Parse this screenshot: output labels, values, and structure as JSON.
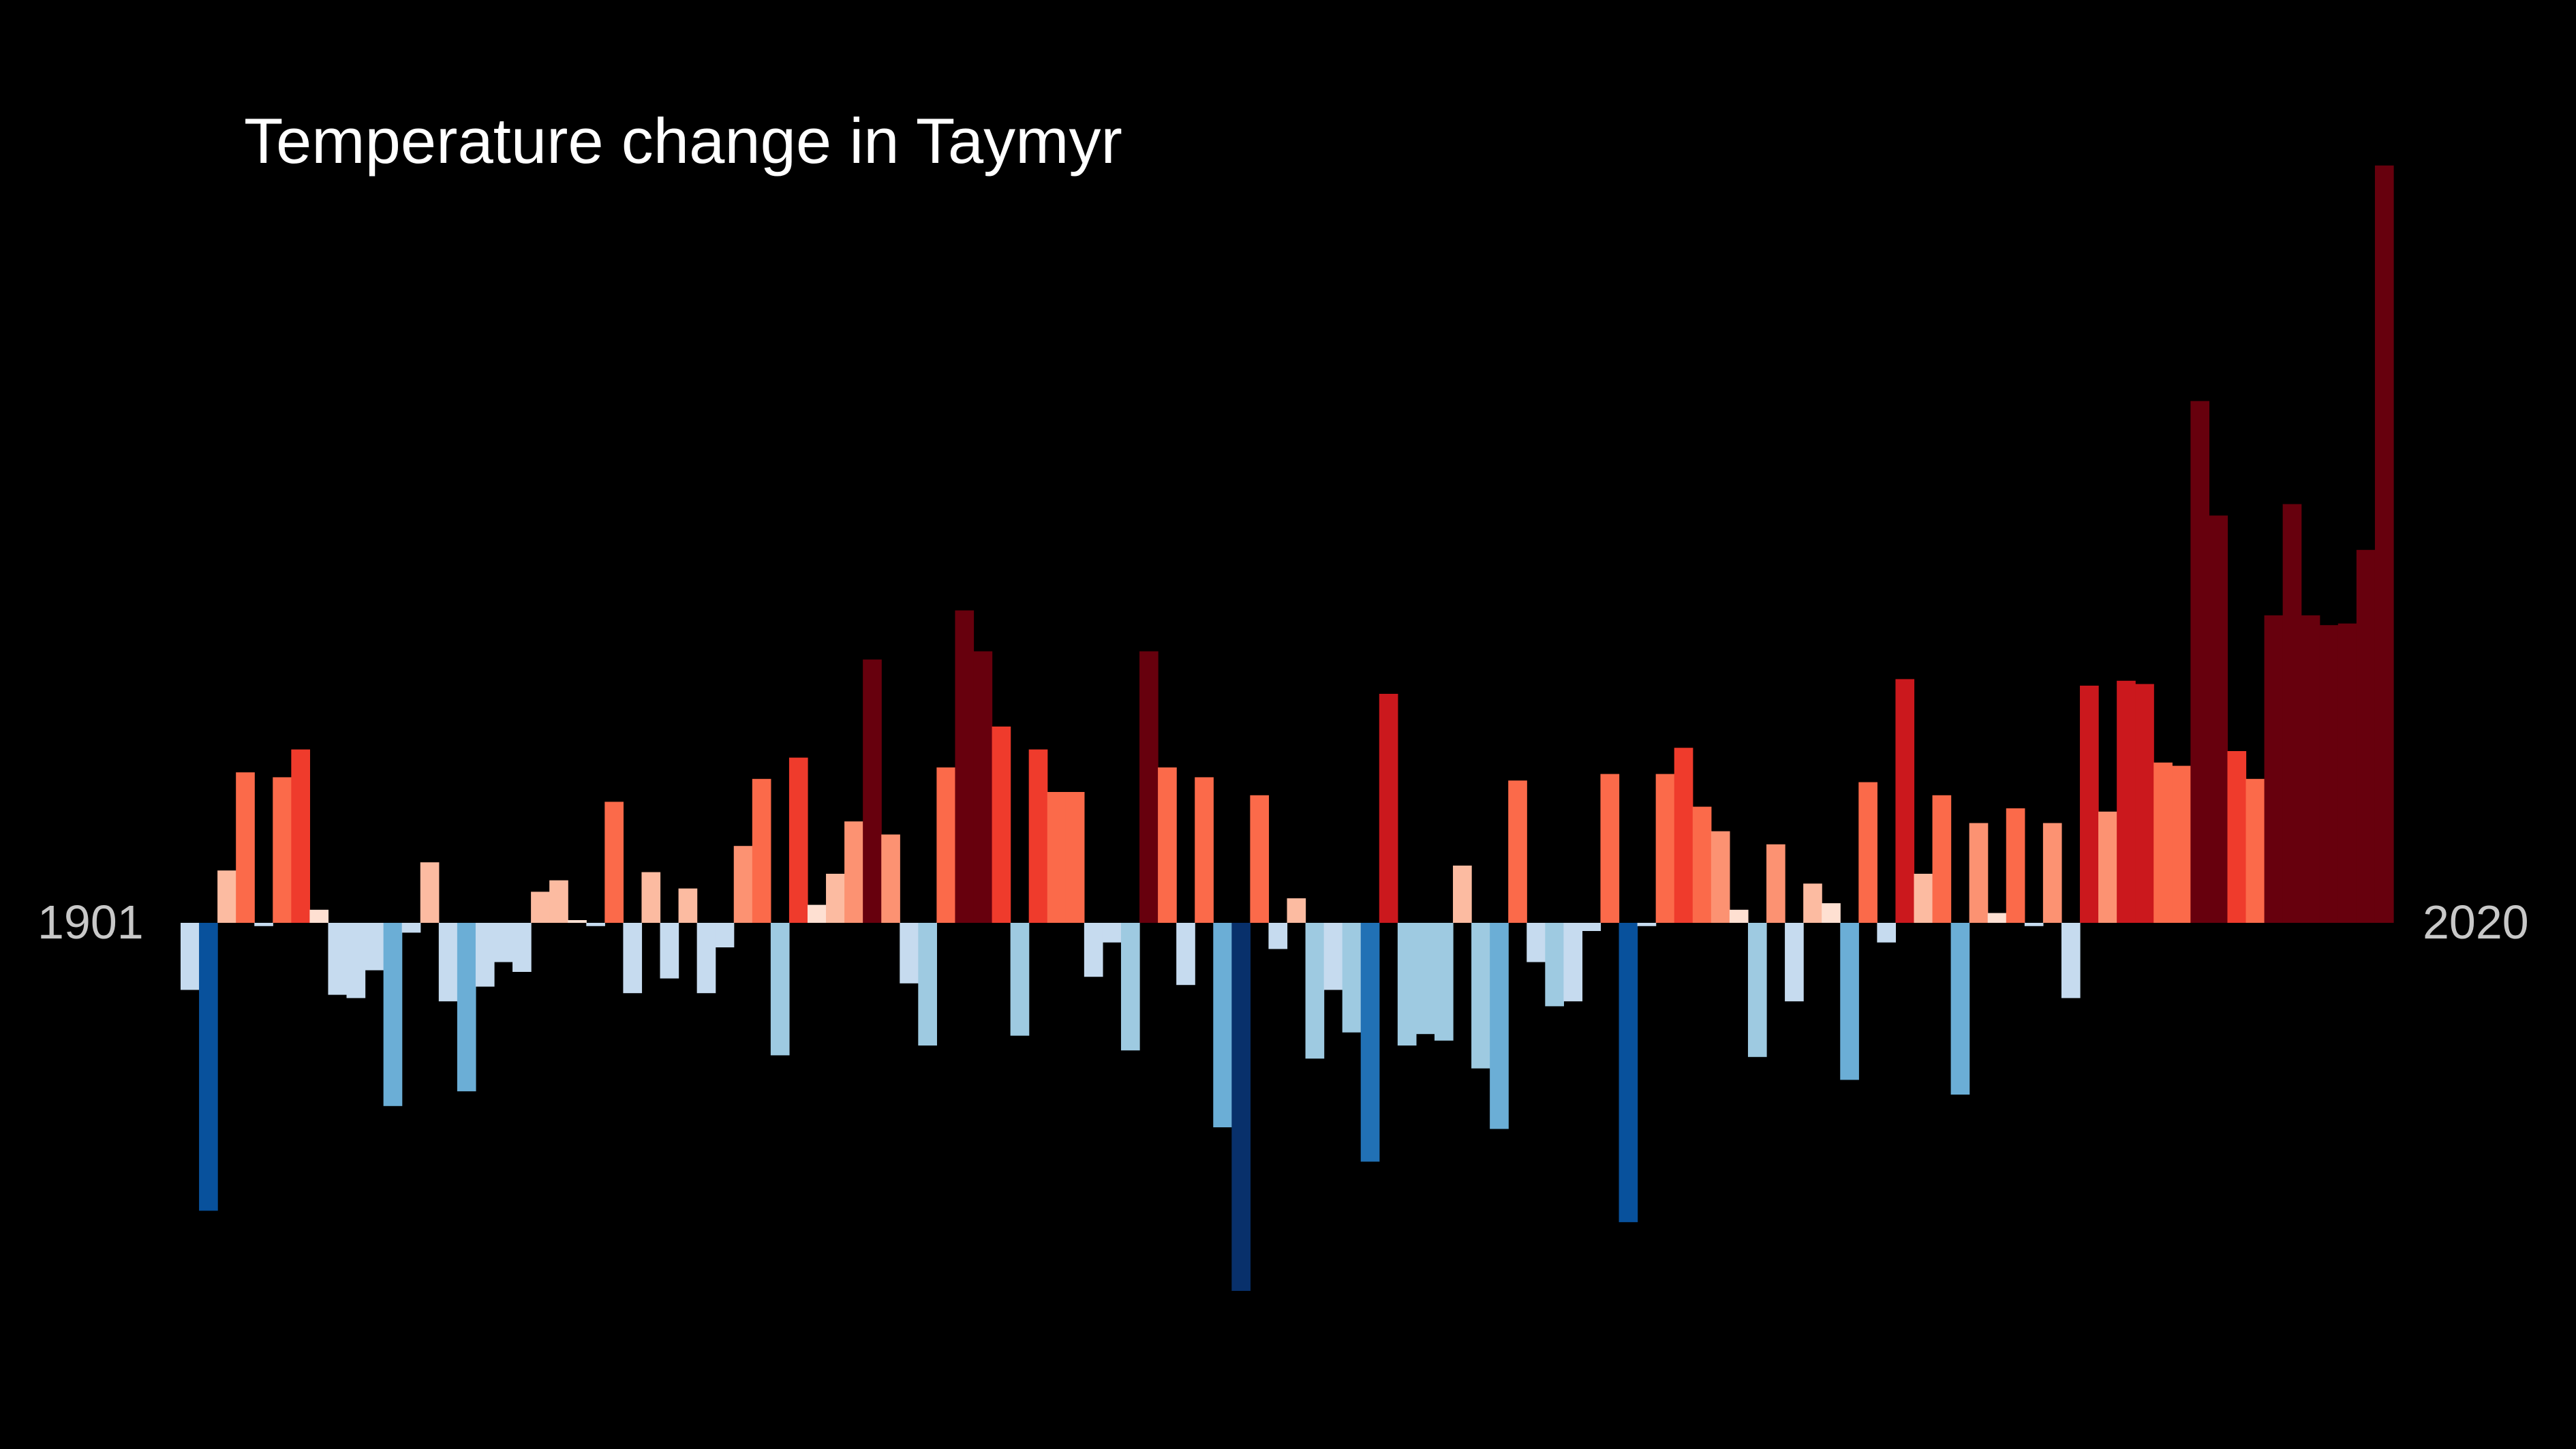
{
  "chart_data": {
    "type": "bar",
    "title": "Temperature change in Taymyr",
    "start_label": "1901",
    "end_label": "2020",
    "x": [
      1901,
      1902,
      1903,
      1904,
      1905,
      1906,
      1907,
      1908,
      1909,
      1910,
      1911,
      1912,
      1913,
      1914,
      1915,
      1916,
      1917,
      1918,
      1919,
      1920,
      1921,
      1922,
      1923,
      1924,
      1925,
      1926,
      1927,
      1928,
      1929,
      1930,
      1931,
      1932,
      1933,
      1934,
      1935,
      1936,
      1937,
      1938,
      1939,
      1940,
      1941,
      1942,
      1943,
      1944,
      1945,
      1946,
      1947,
      1948,
      1949,
      1950,
      1951,
      1952,
      1953,
      1954,
      1955,
      1956,
      1957,
      1958,
      1959,
      1960,
      1961,
      1962,
      1963,
      1964,
      1965,
      1966,
      1967,
      1968,
      1969,
      1970,
      1971,
      1972,
      1973,
      1974,
      1975,
      1976,
      1977,
      1978,
      1979,
      1980,
      1981,
      1982,
      1983,
      1984,
      1985,
      1986,
      1987,
      1988,
      1989,
      1990,
      1991,
      1992,
      1993,
      1994,
      1995,
      1996,
      1997,
      1998,
      1999,
      2000,
      2001,
      2002,
      2003,
      2004,
      2005,
      2006,
      2007,
      2008,
      2009,
      2010,
      2011,
      2012,
      2013,
      2014,
      2015,
      2016,
      2017,
      2018,
      2019,
      2020
    ],
    "values": [
      -0.41,
      -1.76,
      0.32,
      0.92,
      -0.02,
      0.89,
      1.06,
      0.08,
      -0.44,
      -0.46,
      -0.29,
      -1.12,
      -0.06,
      0.37,
      -0.48,
      -1.03,
      -0.39,
      -0.24,
      -0.3,
      0.19,
      0.26,
      0.0,
      -0.02,
      0.74,
      -0.43,
      0.31,
      -0.34,
      0.21,
      -0.43,
      -0.15,
      0.47,
      0.88,
      -0.81,
      1.01,
      0.11,
      0.3,
      0.62,
      1.61,
      0.54,
      -0.37,
      -0.75,
      0.95,
      1.91,
      1.66,
      1.2,
      -0.69,
      1.06,
      0.8,
      0.8,
      -0.33,
      -0.12,
      -0.78,
      1.66,
      0.95,
      -0.38,
      0.89,
      -1.25,
      -2.25,
      0.78,
      -0.16,
      0.15,
      -0.83,
      -0.41,
      -0.67,
      -1.46,
      1.4,
      -0.75,
      -0.68,
      -0.72,
      0.35,
      -0.89,
      -1.26,
      0.87,
      -0.24,
      -0.51,
      -0.48,
      -0.05,
      0.91,
      -1.83,
      -0.02,
      0.91,
      1.07,
      0.71,
      0.56,
      0.08,
      -0.82,
      0.48,
      -0.48,
      0.24,
      0.12,
      -0.96,
      0.86,
      -0.12,
      1.49,
      0.3,
      0.78,
      -1.05,
      0.61,
      0.06,
      0.7,
      -0.02,
      0.61,
      -0.46,
      1.45,
      0.68,
      1.48,
      1.46,
      0.98,
      0.96,
      3.19,
      2.49,
      1.05,
      0.88,
      1.88,
      2.56,
      1.88,
      1.82,
      1.83,
      2.28,
      4.63
    ],
    "ylim": [
      -2.6,
      4.8
    ],
    "colors": {
      "cold": [
        "#c6dbef",
        "#9ecae1",
        "#6baed6",
        "#2171b5",
        "#08519c",
        "#08306b"
      ],
      "warm": [
        "#fee0d2",
        "#fcbba1",
        "#fc9272",
        "#fb6a4a",
        "#ef3b2c",
        "#cb181d",
        "#67000d"
      ]
    }
  }
}
